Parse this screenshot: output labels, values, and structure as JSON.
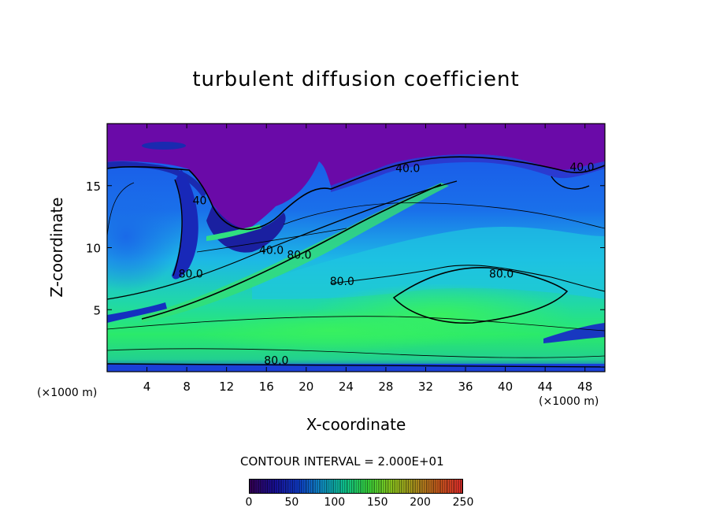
{
  "chart_data": {
    "type": "heatmap",
    "title": "turbulent diffusion coefficient",
    "xlabel": "X-coordinate",
    "ylabel": "Z-coordinate",
    "x_unit_label": "(×1000 m)",
    "x_unit_label_right": "(×1000 m)",
    "xlim": [
      0,
      50
    ],
    "ylim": [
      0,
      20
    ],
    "x_ticks": [
      4,
      8,
      12,
      16,
      20,
      24,
      28,
      32,
      36,
      40,
      44,
      48
    ],
    "y_ticks": [
      5,
      10,
      15
    ],
    "contour_interval_text": "CONTOUR INTERVAL = 2.000E+01",
    "contour_labels": [
      {
        "text": "40.0",
        "x": 30.2,
        "y": 16.1
      },
      {
        "text": "40.0",
        "x": 47.7,
        "y": 16.2
      },
      {
        "text": "40.0",
        "x": 16.5,
        "y": 9.5
      },
      {
        "text": "80.0",
        "x": 8.4,
        "y": 7.6
      },
      {
        "text": "80.0",
        "x": 19.3,
        "y": 9.1
      },
      {
        "text": "80.0",
        "x": 23.6,
        "y": 7.0
      },
      {
        "text": "80.0",
        "x": 39.6,
        "y": 7.6
      },
      {
        "text": "80.0",
        "x": 17.0,
        "y": 0.6
      },
      {
        "text": "40",
        "x": 9.3,
        "y": 13.5
      }
    ],
    "colorbar": {
      "range": [
        0,
        250
      ],
      "ticks": [
        "0",
        "50",
        "100",
        "150",
        "200",
        "250"
      ],
      "colors": [
        "#3a0060",
        "#1a10a8",
        "#1040e0",
        "#10a0e0",
        "#10e0a0",
        "#40f040",
        "#a0e020",
        "#c0a020",
        "#e06020",
        "#ff3030"
      ]
    },
    "colors": {
      "top_layer": "#6a0aa8",
      "upper_band": "#1a44e6",
      "mid_band": "#1db8e6",
      "lower_band": "#22e078",
      "surface_band": "#1a40d8"
    }
  }
}
